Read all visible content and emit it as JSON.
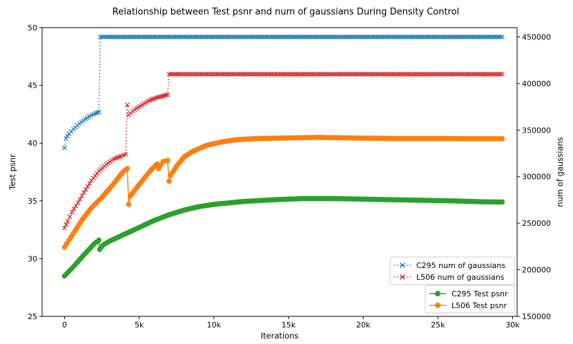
{
  "chart_data": {
    "type": "line",
    "title": "Relationship between Test psnr and num of gaussians During Density Control",
    "xlabel": "Iterations",
    "ylabel_left": "Test psnr",
    "ylabel_right": "num of gaussians",
    "xlim": [
      -1500,
      30300
    ],
    "ylim_left": [
      25,
      50
    ],
    "ylim_right": [
      150000,
      460000
    ],
    "x_ticks": [
      0,
      5000,
      10000,
      15000,
      20000,
      25000,
      30000
    ],
    "x_tick_labels": [
      "0",
      "5k",
      "10k",
      "15k",
      "20k",
      "25k",
      "30k"
    ],
    "y_left_ticks": [
      25,
      30,
      35,
      40,
      45,
      50
    ],
    "y_left_tick_labels": [
      "25",
      "30",
      "35",
      "40",
      "45",
      "50"
    ],
    "y_right_ticks": [
      150000,
      200000,
      250000,
      300000,
      350000,
      400000,
      450000
    ],
    "y_right_tick_labels": [
      "150000",
      "200000",
      "250000",
      "300000",
      "350000",
      "400000",
      "450000"
    ],
    "grid": false,
    "legends": [
      {
        "placement": "lower-right upper",
        "entries": [
          "C295 num of gaussians",
          "L506 num of gaussians"
        ]
      },
      {
        "placement": "lower-right",
        "entries": [
          "C295 Test psnr",
          "L506 Test psnr"
        ]
      }
    ],
    "series": [
      {
        "name": "C295 num of gaussians",
        "axis": "right",
        "color": "#1f77b4",
        "style": "dotted-x",
        "points": [
          [
            0,
            331000
          ],
          [
            100,
            341000
          ],
          [
            300,
            346000
          ],
          [
            600,
            351000
          ],
          [
            1000,
            357000
          ],
          [
            1400,
            362000
          ],
          [
            1800,
            366000
          ],
          [
            2100,
            368000
          ],
          [
            2300,
            369500
          ],
          [
            2400,
            450000
          ],
          [
            3000,
            450000
          ],
          [
            5000,
            450000
          ],
          [
            10000,
            450000
          ],
          [
            15000,
            450000
          ],
          [
            20000,
            450000
          ],
          [
            25000,
            450000
          ],
          [
            29300,
            450000
          ]
        ]
      },
      {
        "name": "L506 num of gaussians",
        "axis": "right",
        "color": "#d62728",
        "style": "dotted-x",
        "points": [
          [
            0,
            245000
          ],
          [
            200,
            252000
          ],
          [
            500,
            262000
          ],
          [
            900,
            272000
          ],
          [
            1300,
            283000
          ],
          [
            1800,
            296000
          ],
          [
            2300,
            306000
          ],
          [
            2800,
            313000
          ],
          [
            3300,
            319000
          ],
          [
            3800,
            322000
          ],
          [
            4100,
            324000
          ],
          [
            4200,
            377000
          ],
          [
            4300,
            366000
          ],
          [
            4700,
            372000
          ],
          [
            5200,
            377000
          ],
          [
            5700,
            382000
          ],
          [
            6200,
            385000
          ],
          [
            6700,
            387000
          ],
          [
            6900,
            388000
          ],
          [
            7000,
            410000
          ],
          [
            8000,
            410000
          ],
          [
            10000,
            410000
          ],
          [
            15000,
            410000
          ],
          [
            20000,
            410000
          ],
          [
            25000,
            410000
          ],
          [
            29300,
            410000
          ]
        ]
      },
      {
        "name": "C295 Test psnr",
        "axis": "left",
        "color": "#2ca02c",
        "style": "solid-o",
        "points": [
          [
            0,
            28.5
          ],
          [
            300,
            28.9
          ],
          [
            600,
            29.3
          ],
          [
            1000,
            29.9
          ],
          [
            1500,
            30.6
          ],
          [
            2000,
            31.3
          ],
          [
            2300,
            31.6
          ],
          [
            2350,
            30.8
          ],
          [
            2600,
            31.2
          ],
          [
            3000,
            31.5
          ],
          [
            4000,
            32.1
          ],
          [
            5000,
            32.7
          ],
          [
            6000,
            33.3
          ],
          [
            7000,
            33.8
          ],
          [
            8000,
            34.2
          ],
          [
            9000,
            34.5
          ],
          [
            10000,
            34.7
          ],
          [
            12000,
            34.95
          ],
          [
            14000,
            35.1
          ],
          [
            16000,
            35.2
          ],
          [
            18000,
            35.2
          ],
          [
            20000,
            35.15
          ],
          [
            22000,
            35.1
          ],
          [
            24000,
            35.05
          ],
          [
            26000,
            35.0
          ],
          [
            28000,
            34.92
          ],
          [
            29300,
            34.9
          ]
        ]
      },
      {
        "name": "L506 Test psnr",
        "axis": "left",
        "color": "#ff7f0e",
        "style": "solid-o",
        "points": [
          [
            0,
            31.0
          ],
          [
            300,
            31.6
          ],
          [
            700,
            32.4
          ],
          [
            1200,
            33.4
          ],
          [
            1800,
            34.4
          ],
          [
            2500,
            35.3
          ],
          [
            3300,
            36.5
          ],
          [
            3900,
            37.5
          ],
          [
            4200,
            37.8
          ],
          [
            4300,
            34.7
          ],
          [
            4400,
            35.4
          ],
          [
            4800,
            36.1
          ],
          [
            5300,
            36.9
          ],
          [
            5800,
            37.7
          ],
          [
            6200,
            38.2
          ],
          [
            6300,
            37.8
          ],
          [
            6600,
            38.4
          ],
          [
            6900,
            38.5
          ],
          [
            7000,
            36.7
          ],
          [
            7100,
            37.2
          ],
          [
            7500,
            38.0
          ],
          [
            8000,
            38.8
          ],
          [
            8600,
            39.3
          ],
          [
            9500,
            39.8
          ],
          [
            10500,
            40.1
          ],
          [
            11500,
            40.3
          ],
          [
            13000,
            40.4
          ],
          [
            15000,
            40.45
          ],
          [
            17000,
            40.5
          ],
          [
            19000,
            40.45
          ],
          [
            22000,
            40.4
          ],
          [
            25000,
            40.4
          ],
          [
            27000,
            40.38
          ],
          [
            29300,
            40.38
          ]
        ]
      }
    ]
  }
}
